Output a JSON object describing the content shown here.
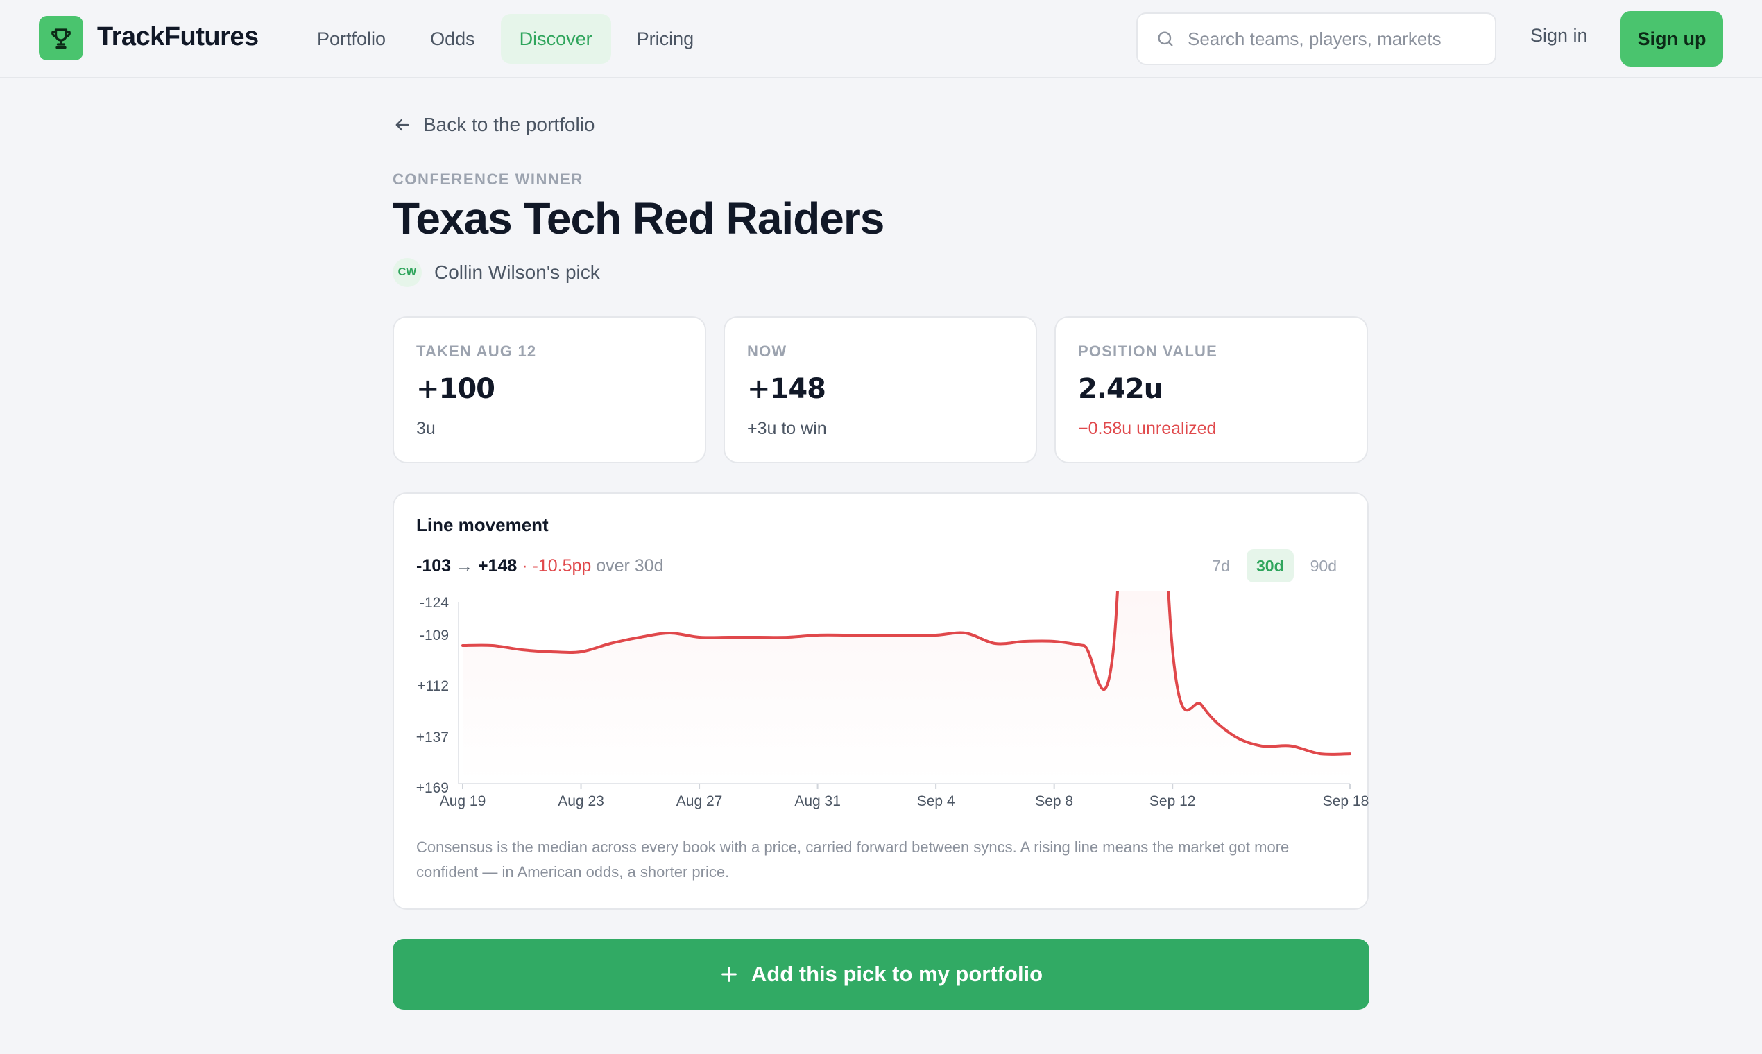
{
  "header": {
    "brand": "TrackFutures",
    "nav": [
      {
        "label": "Portfolio",
        "active": false
      },
      {
        "label": "Odds",
        "active": false
      },
      {
        "label": "Discover",
        "active": true
      },
      {
        "label": "Pricing",
        "active": false
      }
    ],
    "search_placeholder": "Search teams, players, markets",
    "signin": "Sign in",
    "signup": "Sign up"
  },
  "page": {
    "back_label": "Back to the portfolio",
    "eyebrow": "CONFERENCE WINNER",
    "title": "Texas Tech Red Raiders",
    "avatar_initials": "CW",
    "byline": "Collin Wilson's pick"
  },
  "stats": [
    {
      "label": "TAKEN AUG 12",
      "value": "+100",
      "sub": "3u",
      "sub_negative": false
    },
    {
      "label": "NOW",
      "value": "+148",
      "sub": "+3u to win",
      "sub_negative": false
    },
    {
      "label": "POSITION VALUE",
      "value": "2.42u",
      "sub": "−0.58u unrealized",
      "sub_negative": true
    }
  ],
  "chart_card": {
    "title": "Line movement",
    "from": "-103",
    "arrow": "→",
    "to": "+148",
    "dot": " · ",
    "change": "-10.5pp",
    "period_text": " over 30d",
    "ranges": [
      {
        "label": "7d",
        "active": false
      },
      {
        "label": "30d",
        "active": true
      },
      {
        "label": "90d",
        "active": false
      }
    ],
    "footnote": "Consensus is the median across every book with a price, carried forward between syncs. A rising line means the market got more confident — in American odds, a shorter price."
  },
  "cta_label": "Add this pick to my portfolio",
  "colors": {
    "accent": "#4ac46e",
    "accent_dark": "#31aa64",
    "negative": "#e0484b"
  },
  "chart_data": {
    "type": "area",
    "y_ticks": [
      "-124",
      "-109",
      "+112",
      "+137",
      "+169"
    ],
    "x_ticks": [
      "Aug 19",
      "Aug 23",
      "Aug 27",
      "Aug 31",
      "Sep 4",
      "Sep 8",
      "Sep 12",
      "Sep 18"
    ],
    "x": [
      "Aug 19",
      "Aug 20",
      "Aug 21",
      "Aug 22",
      "Aug 23",
      "Aug 24",
      "Aug 25",
      "Aug 26",
      "Aug 27",
      "Aug 28",
      "Aug 29",
      "Aug 30",
      "Aug 31",
      "Sep 1",
      "Sep 2",
      "Sep 3",
      "Sep 4",
      "Sep 5",
      "Sep 6",
      "Sep 7",
      "Sep 8",
      "Sep 9",
      "Sep 10",
      "Sep 11",
      "Sep 12",
      "Sep 13",
      "Sep 14",
      "Sep 15",
      "Sep 16",
      "Sep 17",
      "Sep 18"
    ],
    "series": [
      {
        "values": [
          -103,
          -103,
          -101,
          -100,
          -100,
          -104,
          -107,
          -109,
          -107,
          -107,
          -107,
          -107,
          -108,
          -108,
          -108,
          -108,
          -108,
          -109,
          -104,
          -105,
          -105,
          -103,
          -101,
          -99,
          -101,
          122,
          136,
          143,
          143,
          148,
          148
        ]
      }
    ],
    "ylim": [
      "-124",
      "+169"
    ],
    "grid": false,
    "line_color": "#e0484b"
  }
}
